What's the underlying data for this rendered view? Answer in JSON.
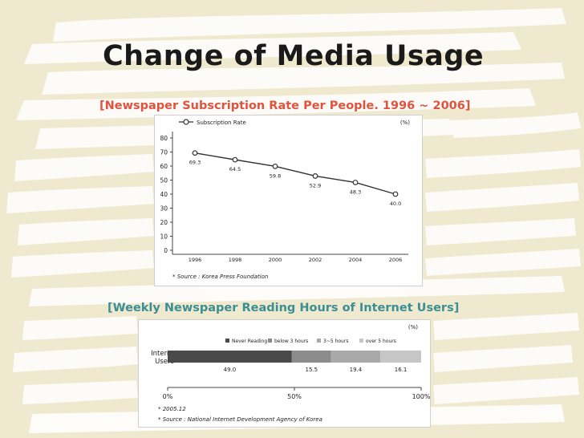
{
  "slide": {
    "title": "Change of Media Usage",
    "subtitle_1": "[Newspaper Subscription Rate Per People. 1996 ~ 2006]",
    "subtitle_2": "[Weekly Newspaper Reading Hours of Internet Users]",
    "colors": {
      "background": "#efe9cf",
      "brush": "#ffffff",
      "subtitle_1": "#e0533f",
      "subtitle_2": "#3b8f93"
    }
  },
  "chart_data": [
    {
      "type": "line",
      "legend": "Subscription Rate",
      "unit": "(%)",
      "x": [
        "1996",
        "1998",
        "2000",
        "2002",
        "2004",
        "2006"
      ],
      "series": [
        {
          "name": "Subscription Rate",
          "values": [
            69.3,
            64.5,
            59.8,
            52.9,
            48.3,
            40.0
          ],
          "labels": [
            "69.3",
            "64.5",
            "59.8",
            "52.9",
            "48.3",
            "40.0"
          ]
        }
      ],
      "y_ticks": [
        "0",
        "10",
        "20",
        "30",
        "40",
        "50",
        "60",
        "70",
        "80"
      ],
      "ylim": [
        0,
        80
      ],
      "legend_position": "top",
      "grid": false,
      "source": "* Source : Korea Press Foundation"
    },
    {
      "type": "bar",
      "orientation": "horizontal-stacked",
      "unit": "(%)",
      "category": "Internet Users",
      "category_lines": [
        "Internet",
        "Users"
      ],
      "segments": [
        {
          "name": "Never Reading",
          "value": 49.0,
          "label": "49.0",
          "color": "#4a4a4a"
        },
        {
          "name": "below 3 hours",
          "value": 15.5,
          "label": "15.5",
          "color": "#8c8c8c"
        },
        {
          "name": "3~5 hours",
          "value": 19.4,
          "label": "19.4",
          "color": "#a9a9a9"
        },
        {
          "name": "over 5 hours",
          "value": 16.1,
          "label": "16.1",
          "color": "#c6c6c6"
        }
      ],
      "x_ticks": [
        "0%",
        "50%",
        "100%"
      ],
      "xlim": [
        0,
        100
      ],
      "legend_position": "top",
      "notes": [
        "* 2005.12",
        "* Source : National Internet Development Agency of Korea"
      ]
    }
  ]
}
